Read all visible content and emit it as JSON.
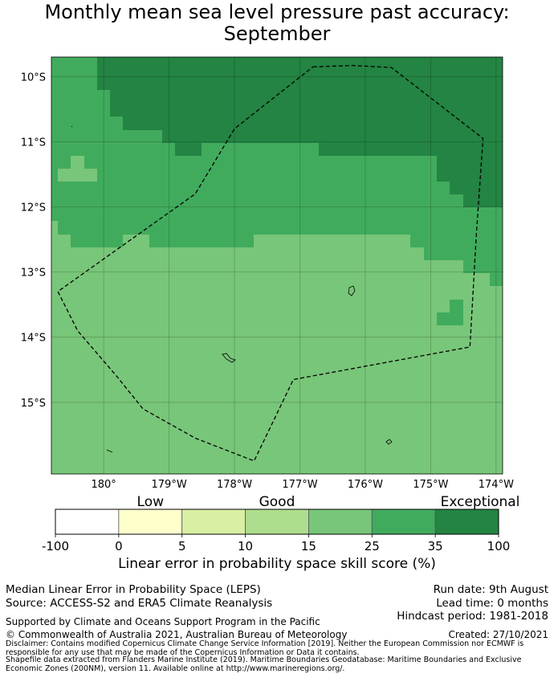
{
  "title_line1": "Monthly mean sea level pressure past accuracy:",
  "title_line2": "September",
  "map": {
    "lon_range": [
      -179.2,
      -172.3
    ],
    "lat_range": [
      -16.1,
      -9.7
    ],
    "lat_ticks": [
      {
        "value": -10,
        "label": "10°S"
      },
      {
        "value": -11,
        "label": "11°S"
      },
      {
        "value": -12,
        "label": "12°S"
      },
      {
        "value": -13,
        "label": "13°S"
      },
      {
        "value": -14,
        "label": "14°S"
      },
      {
        "value": -15,
        "label": "15°S"
      }
    ],
    "lon_ticks": [
      {
        "value": -178.4,
        "label": "180°"
      },
      {
        "value": -177.4,
        "label": "179°W"
      },
      {
        "value": -176.4,
        "label": "178°W"
      },
      {
        "value": -175.4,
        "label": "177°W"
      },
      {
        "value": -174.4,
        "label": "176°W"
      },
      {
        "value": -173.4,
        "label": "175°W"
      },
      {
        "value": -172.4,
        "label": "174°W"
      }
    ],
    "band_colors": {
      "b1525": "#78c679",
      "b2535": "#41ab5d",
      "b35100": "#238443"
    },
    "eez_boundary": [
      [
        -175.2,
        -9.85
      ],
      [
        -174.6,
        -9.83
      ],
      [
        -174.0,
        -9.86
      ],
      [
        -172.6,
        -10.95
      ],
      [
        -172.7,
        -12.4
      ],
      [
        -172.8,
        -14.15
      ],
      [
        -175.5,
        -14.65
      ],
      [
        -176.1,
        -15.9
      ],
      [
        -177.0,
        -15.55
      ],
      [
        -177.8,
        -15.1
      ],
      [
        -178.2,
        -14.6
      ],
      [
        -178.8,
        -13.9
      ],
      [
        -179.1,
        -13.3
      ],
      [
        -177.0,
        -11.8
      ],
      [
        -176.4,
        -10.8
      ],
      [
        -175.2,
        -9.85
      ]
    ]
  },
  "colorbar": {
    "categories": [
      "Low",
      "Good",
      "Exceptional"
    ],
    "ticks": [
      "-100",
      "0",
      "5",
      "10",
      "15",
      "25",
      "35",
      "100"
    ],
    "colors": [
      "#ffffff",
      "#ffffcc",
      "#d9f0a3",
      "#addd8e",
      "#78c679",
      "#41ab5d",
      "#238443"
    ],
    "label": "Linear error in probability space skill score (%)"
  },
  "footer": {
    "method": "Median Linear Error in Probability Space (LEPS)",
    "source": "Source: ACCESS-S2 and ERA5 Climate Reanalysis",
    "run_date": "Run date: 9th August",
    "lead_time": "Lead time: 0 months",
    "hindcast": "Hindcast period: 1981-2018",
    "supported": "Supported by Climate and Oceans Support Program in the Pacific",
    "copyright": "© Commonwealth of Australia 2021, Australian Bureau of Meteorology",
    "created": "Created: 27/10/2021",
    "disclaimer": "Disclaimer: Contains modified Copernicus Climate Change Service Information [2019]. Neither the European Commission nor ECMWF is responsible for any use that may be made of the Copernicus Information or Data it contains.",
    "shapefile": "Shapefile data extracted from Flanders Marine Institute (2019). Maritime Boundaries Geodatabase: Maritime Boundaries and Exclusive Economic Zones (200NM), version 11. Available online at http://www.marineregions.org/."
  }
}
